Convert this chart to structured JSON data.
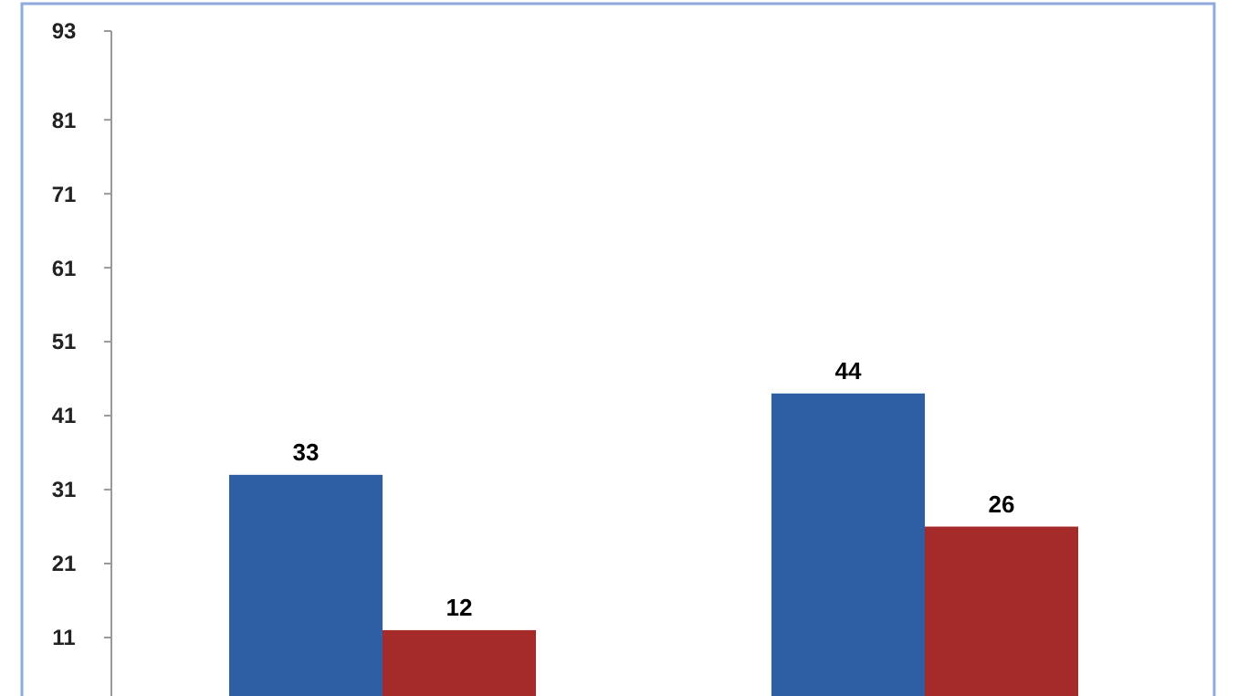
{
  "chart_data": {
    "type": "bar",
    "categories": [
      null,
      null
    ],
    "series": [
      {
        "color": "#2e5fa3",
        "values": [
          33,
          44
        ]
      },
      {
        "color": "#a52a2a",
        "values": [
          12,
          26
        ]
      }
    ],
    "ylim": [
      3,
      93
    ],
    "yticks": [
      11,
      21,
      31,
      41,
      51,
      61,
      71,
      81,
      93
    ],
    "grid": false,
    "data_labels": true
  }
}
